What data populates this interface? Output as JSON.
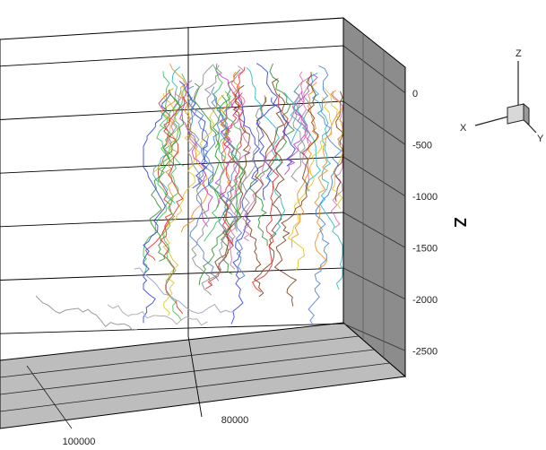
{
  "chart_data": {
    "type": "line",
    "description_of_view": "3D perspective plot",
    "zlabel": "Z",
    "z_ticks": [
      0,
      -500,
      -1000,
      -1500,
      -2000,
      -2500
    ],
    "x_ticks": [
      100000,
      80000
    ],
    "zlim": [
      -2750,
      250
    ],
    "triad_labels": {
      "x": "X",
      "y": "Y",
      "z": "Z"
    },
    "series_colors": [
      "#e32b2b",
      "#2a8f2a",
      "#2a3fd6",
      "#e0c21a",
      "#1fb8c4",
      "#c43ac8",
      "#f08a1c",
      "#7a3b12",
      "#8a8a8a",
      "#35c14a",
      "#d96aa8",
      "#4a7ad6"
    ],
    "series_note": "Many overlapping trajectories (approx. 60 series); values unlabeled"
  }
}
